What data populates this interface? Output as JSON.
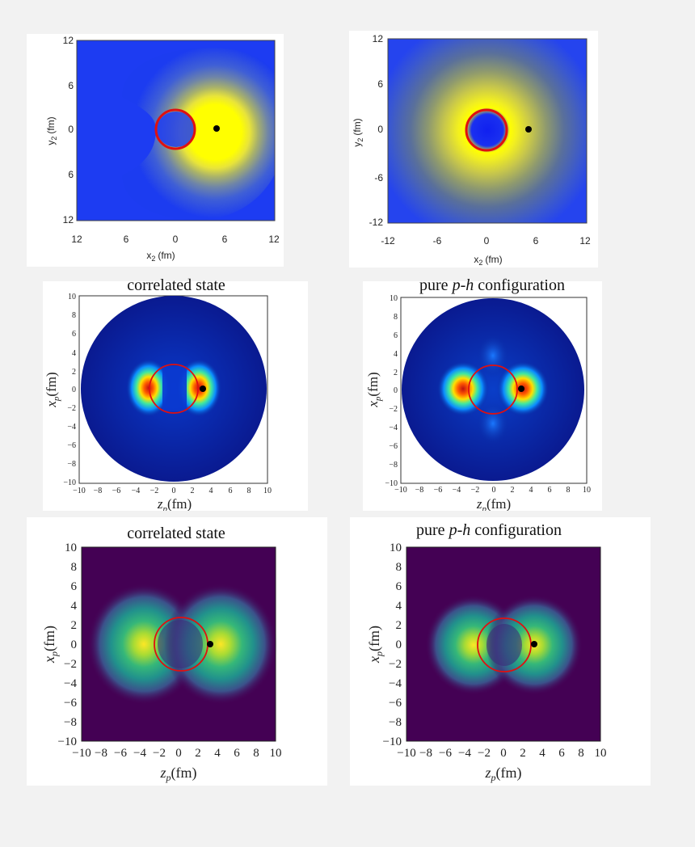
{
  "figure": {
    "panels": [
      {
        "id": "a",
        "style": "sas",
        "xlabel_main": "x",
        "xlabel_sub": "2",
        "xlabel_unit": "(fm)",
        "ylabel_main": "y",
        "ylabel_sub": "2",
        "ylabel_unit": "(fm)",
        "xticks": [
          "12",
          "6",
          "0",
          "6",
          "12"
        ],
        "yticks": [
          "12",
          "6",
          "0",
          "6",
          "12"
        ]
      },
      {
        "id": "b",
        "style": "sas",
        "xlabel_main": "x",
        "xlabel_sub": "2",
        "xlabel_unit": "(fm)",
        "ylabel_main": "y",
        "ylabel_sub": "2",
        "ylabel_unit": "(fm)",
        "xticks": [
          "-12",
          "-6",
          "0",
          "6",
          "12"
        ],
        "yticks": [
          "12",
          "6",
          "-6",
          "-12"
        ]
      },
      {
        "id": "c",
        "style": "mpl",
        "title": "correlated state",
        "xlabel_main": "z",
        "xlabel_sub": "p",
        "xlabel_unit": "(fm)",
        "ylabel_main": "x",
        "ylabel_sub": "p",
        "ylabel_unit": "(fm)",
        "xticks": [
          "−10",
          "−8",
          "−6",
          "−4",
          "−2",
          "0",
          "2",
          "4",
          "6",
          "8",
          "10"
        ],
        "yticks": [
          "10",
          "8",
          "6",
          "4",
          "2",
          "0",
          "−2",
          "−4",
          "−6",
          "−8",
          "−10"
        ]
      },
      {
        "id": "d",
        "style": "mpl",
        "title_pre": "pure ",
        "title_italic": "p-h",
        "title_post": " configuration",
        "xlabel_main": "z",
        "xlabel_sub": "p",
        "xlabel_unit": "(fm)",
        "ylabel_main": "x",
        "ylabel_sub": "p",
        "ylabel_unit": "(fm)",
        "xticks": [
          "−10",
          "−8",
          "−6",
          "−4",
          "−2",
          "0",
          "2",
          "4",
          "6",
          "8",
          "10"
        ],
        "yticks": [
          "10",
          "8",
          "6",
          "4",
          "2",
          "0",
          "−2",
          "−4",
          "−6",
          "−8",
          "−10"
        ]
      },
      {
        "id": "e",
        "style": "mpl",
        "title": "correlated state",
        "xlabel_main": "z",
        "xlabel_sub": "p",
        "xlabel_unit": "(fm)",
        "ylabel_main": "x",
        "ylabel_sub": "p",
        "ylabel_unit": "(fm)",
        "xticks": [
          "−10",
          "−8",
          "−6",
          "−4",
          "−2",
          "0",
          "2",
          "4",
          "6",
          "8",
          "10"
        ],
        "yticks": [
          "10",
          "8",
          "6",
          "4",
          "2",
          "0",
          "−2",
          "−4",
          "−6",
          "−8",
          "−10"
        ]
      },
      {
        "id": "f",
        "style": "mpl",
        "title_pre": "pure ",
        "title_italic": "p-h",
        "title_post": " configuration",
        "xlabel_main": "z",
        "xlabel_sub": "p",
        "xlabel_unit": "(fm)",
        "ylabel_main": "x",
        "ylabel_sub": "p",
        "ylabel_unit": "(fm)",
        "xticks": [
          "−10",
          "−8",
          "−6",
          "−4",
          "−2",
          "0",
          "2",
          "4",
          "6",
          "8",
          "10"
        ],
        "yticks": [
          "10",
          "8",
          "6",
          "4",
          "2",
          "0",
          "−2",
          "−4",
          "−6",
          "−8",
          "−10"
        ]
      }
    ]
  },
  "chart_data": [
    {
      "type": "heatmap",
      "panel": "a",
      "xlim": [
        -12,
        12
      ],
      "ylim": [
        -12,
        12
      ],
      "colormap": "blue-to-yellow",
      "reference_circle_radius_fm": 2.7,
      "fixed_particle_fm": [
        5,
        0
      ],
      "description_values": {
        "peak": "yellow crescent around circle",
        "min": "blue"
      }
    },
    {
      "type": "heatmap",
      "panel": "b",
      "xlim": [
        -12,
        12
      ],
      "ylim": [
        -12,
        12
      ],
      "colormap": "blue-to-yellow",
      "reference_circle_radius_fm": 2.7,
      "fixed_particle_fm": [
        5,
        0
      ]
    },
    {
      "type": "heatmap",
      "panel": "c",
      "xlim": [
        -10,
        10
      ],
      "ylim": [
        -10,
        10
      ],
      "colormap": "jet",
      "lobes_fm": [
        [
          -3,
          0
        ],
        [
          3,
          0
        ]
      ],
      "reference_circle_radius_fm": 2.7,
      "fixed_particle_fm": [
        3,
        0
      ]
    },
    {
      "type": "heatmap",
      "panel": "d",
      "xlim": [
        -10,
        10
      ],
      "ylim": [
        -10,
        10
      ],
      "colormap": "jet",
      "lobes_fm": [
        [
          -3,
          0
        ],
        [
          3,
          0
        ]
      ],
      "reference_circle_radius_fm": 2.7,
      "fixed_particle_fm": [
        3,
        0
      ]
    },
    {
      "type": "heatmap",
      "panel": "e",
      "xlim": [
        -10,
        10
      ],
      "ylim": [
        -10,
        10
      ],
      "colormap": "viridis",
      "lobes_fm": [
        [
          -4,
          0
        ],
        [
          4,
          0
        ]
      ],
      "reference_circle_radius_fm": 2.7,
      "fixed_particle_fm": [
        3,
        0
      ]
    },
    {
      "type": "heatmap",
      "panel": "f",
      "xlim": [
        -10,
        10
      ],
      "ylim": [
        -10,
        10
      ],
      "colormap": "viridis",
      "lobes_fm": [
        [
          -3.5,
          0
        ],
        [
          3.5,
          0
        ]
      ],
      "reference_circle_radius_fm": 2.7,
      "fixed_particle_fm": [
        3,
        0
      ]
    }
  ]
}
